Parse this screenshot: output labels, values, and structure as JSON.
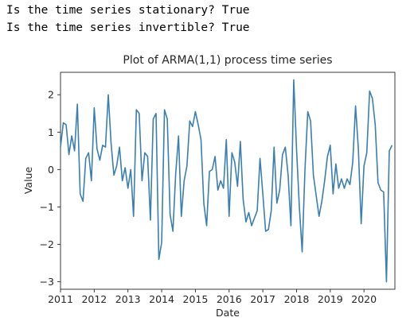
{
  "output_lines": [
    "Is the time series stationary? True",
    "Is the time series invertible? True"
  ],
  "chart_data": {
    "type": "line",
    "title": "Plot of ARMA(1,1) process time series",
    "xlabel": "Date",
    "ylabel": "Value",
    "x_start": "2011-01",
    "x_frequency": "monthly",
    "xlim": [
      "2011-01",
      "2020-12"
    ],
    "ylim": [
      -3.2,
      2.6
    ],
    "xticks": [
      "2011",
      "2012",
      "2013",
      "2014",
      "2015",
      "2016",
      "2017",
      "2018",
      "2019",
      "2020"
    ],
    "yticks": [
      -3,
      -2,
      -1,
      0,
      1,
      2
    ],
    "line_color": "#3a7fb0",
    "grid": false,
    "values": [
      0.6,
      1.25,
      1.2,
      0.4,
      0.9,
      0.5,
      1.75,
      -0.65,
      -0.85,
      0.3,
      0.45,
      -0.3,
      1.65,
      0.55,
      0.25,
      0.65,
      0.6,
      2.0,
      0.7,
      -0.15,
      0.1,
      0.6,
      -0.3,
      0.05,
      -0.5,
      0.0,
      -1.25,
      1.6,
      1.5,
      -0.3,
      0.45,
      0.35,
      -1.35,
      1.35,
      1.5,
      -2.4,
      -1.95,
      1.6,
      1.35,
      -1.2,
      -1.65,
      -0.1,
      0.9,
      -1.25,
      -0.3,
      0.1,
      1.3,
      1.15,
      1.55,
      1.2,
      0.8,
      -0.9,
      -1.5,
      -0.05,
      0.0,
      0.35,
      -0.55,
      -0.3,
      -0.5,
      0.8,
      -1.25,
      0.45,
      0.2,
      -0.45,
      0.75,
      -0.8,
      -1.4,
      -1.15,
      -1.5,
      -1.3,
      -1.1,
      0.3,
      -0.65,
      -1.65,
      -1.6,
      -1.1,
      0.6,
      -0.9,
      -0.55,
      0.4,
      0.6,
      -0.15,
      -1.5,
      2.4,
      0.55,
      -1.0,
      -2.2,
      0.0,
      1.55,
      1.3,
      -0.15,
      -0.7,
      -1.25,
      -0.85,
      -0.3,
      0.35,
      0.65,
      -0.65,
      0.15,
      -0.5,
      -0.25,
      -0.5,
      -0.25,
      -0.4,
      0.2,
      1.7,
      0.55,
      -1.45,
      0.1,
      0.45,
      2.1,
      1.9,
      1.2,
      -0.35,
      -0.55,
      -0.6,
      -3.0,
      0.5,
      0.65
    ]
  }
}
